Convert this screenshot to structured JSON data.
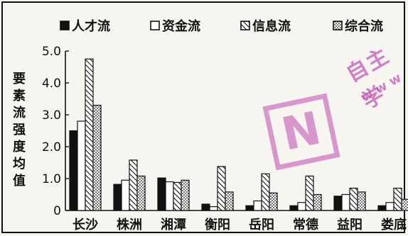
{
  "chart_data": {
    "type": "bar",
    "ylabel": "要素流强度均值",
    "ylim": [
      0,
      5.0
    ],
    "yticks": [
      "0",
      "1.0",
      "2.0",
      "3.0",
      "4.0",
      "5.0"
    ],
    "legend_position": "top",
    "categories": [
      "长沙",
      "株洲",
      "湘潭",
      "衡阳",
      "岳阳",
      "常德",
      "益阳",
      "娄底"
    ],
    "series": [
      {
        "name": "人才流",
        "pattern": "solid",
        "values": [
          2.5,
          0.82,
          1.02,
          0.2,
          0.15,
          0.15,
          0.45,
          0.15
        ]
      },
      {
        "name": "资金流",
        "pattern": "hollow",
        "values": [
          2.8,
          0.95,
          0.9,
          0.12,
          0.3,
          0.25,
          0.5,
          0.25
        ]
      },
      {
        "name": "信息流",
        "pattern": "hatched",
        "values": [
          4.75,
          1.58,
          0.88,
          1.38,
          1.15,
          1.08,
          0.7,
          0.7
        ]
      },
      {
        "name": "综合流",
        "pattern": "dotted",
        "values": [
          3.3,
          1.08,
          0.95,
          0.58,
          0.55,
          0.5,
          0.58,
          0.35
        ]
      }
    ]
  },
  "watermark": {
    "text": "自主学",
    "url": "www",
    "logo_letter": "N",
    "color": "#c25ab6"
  }
}
